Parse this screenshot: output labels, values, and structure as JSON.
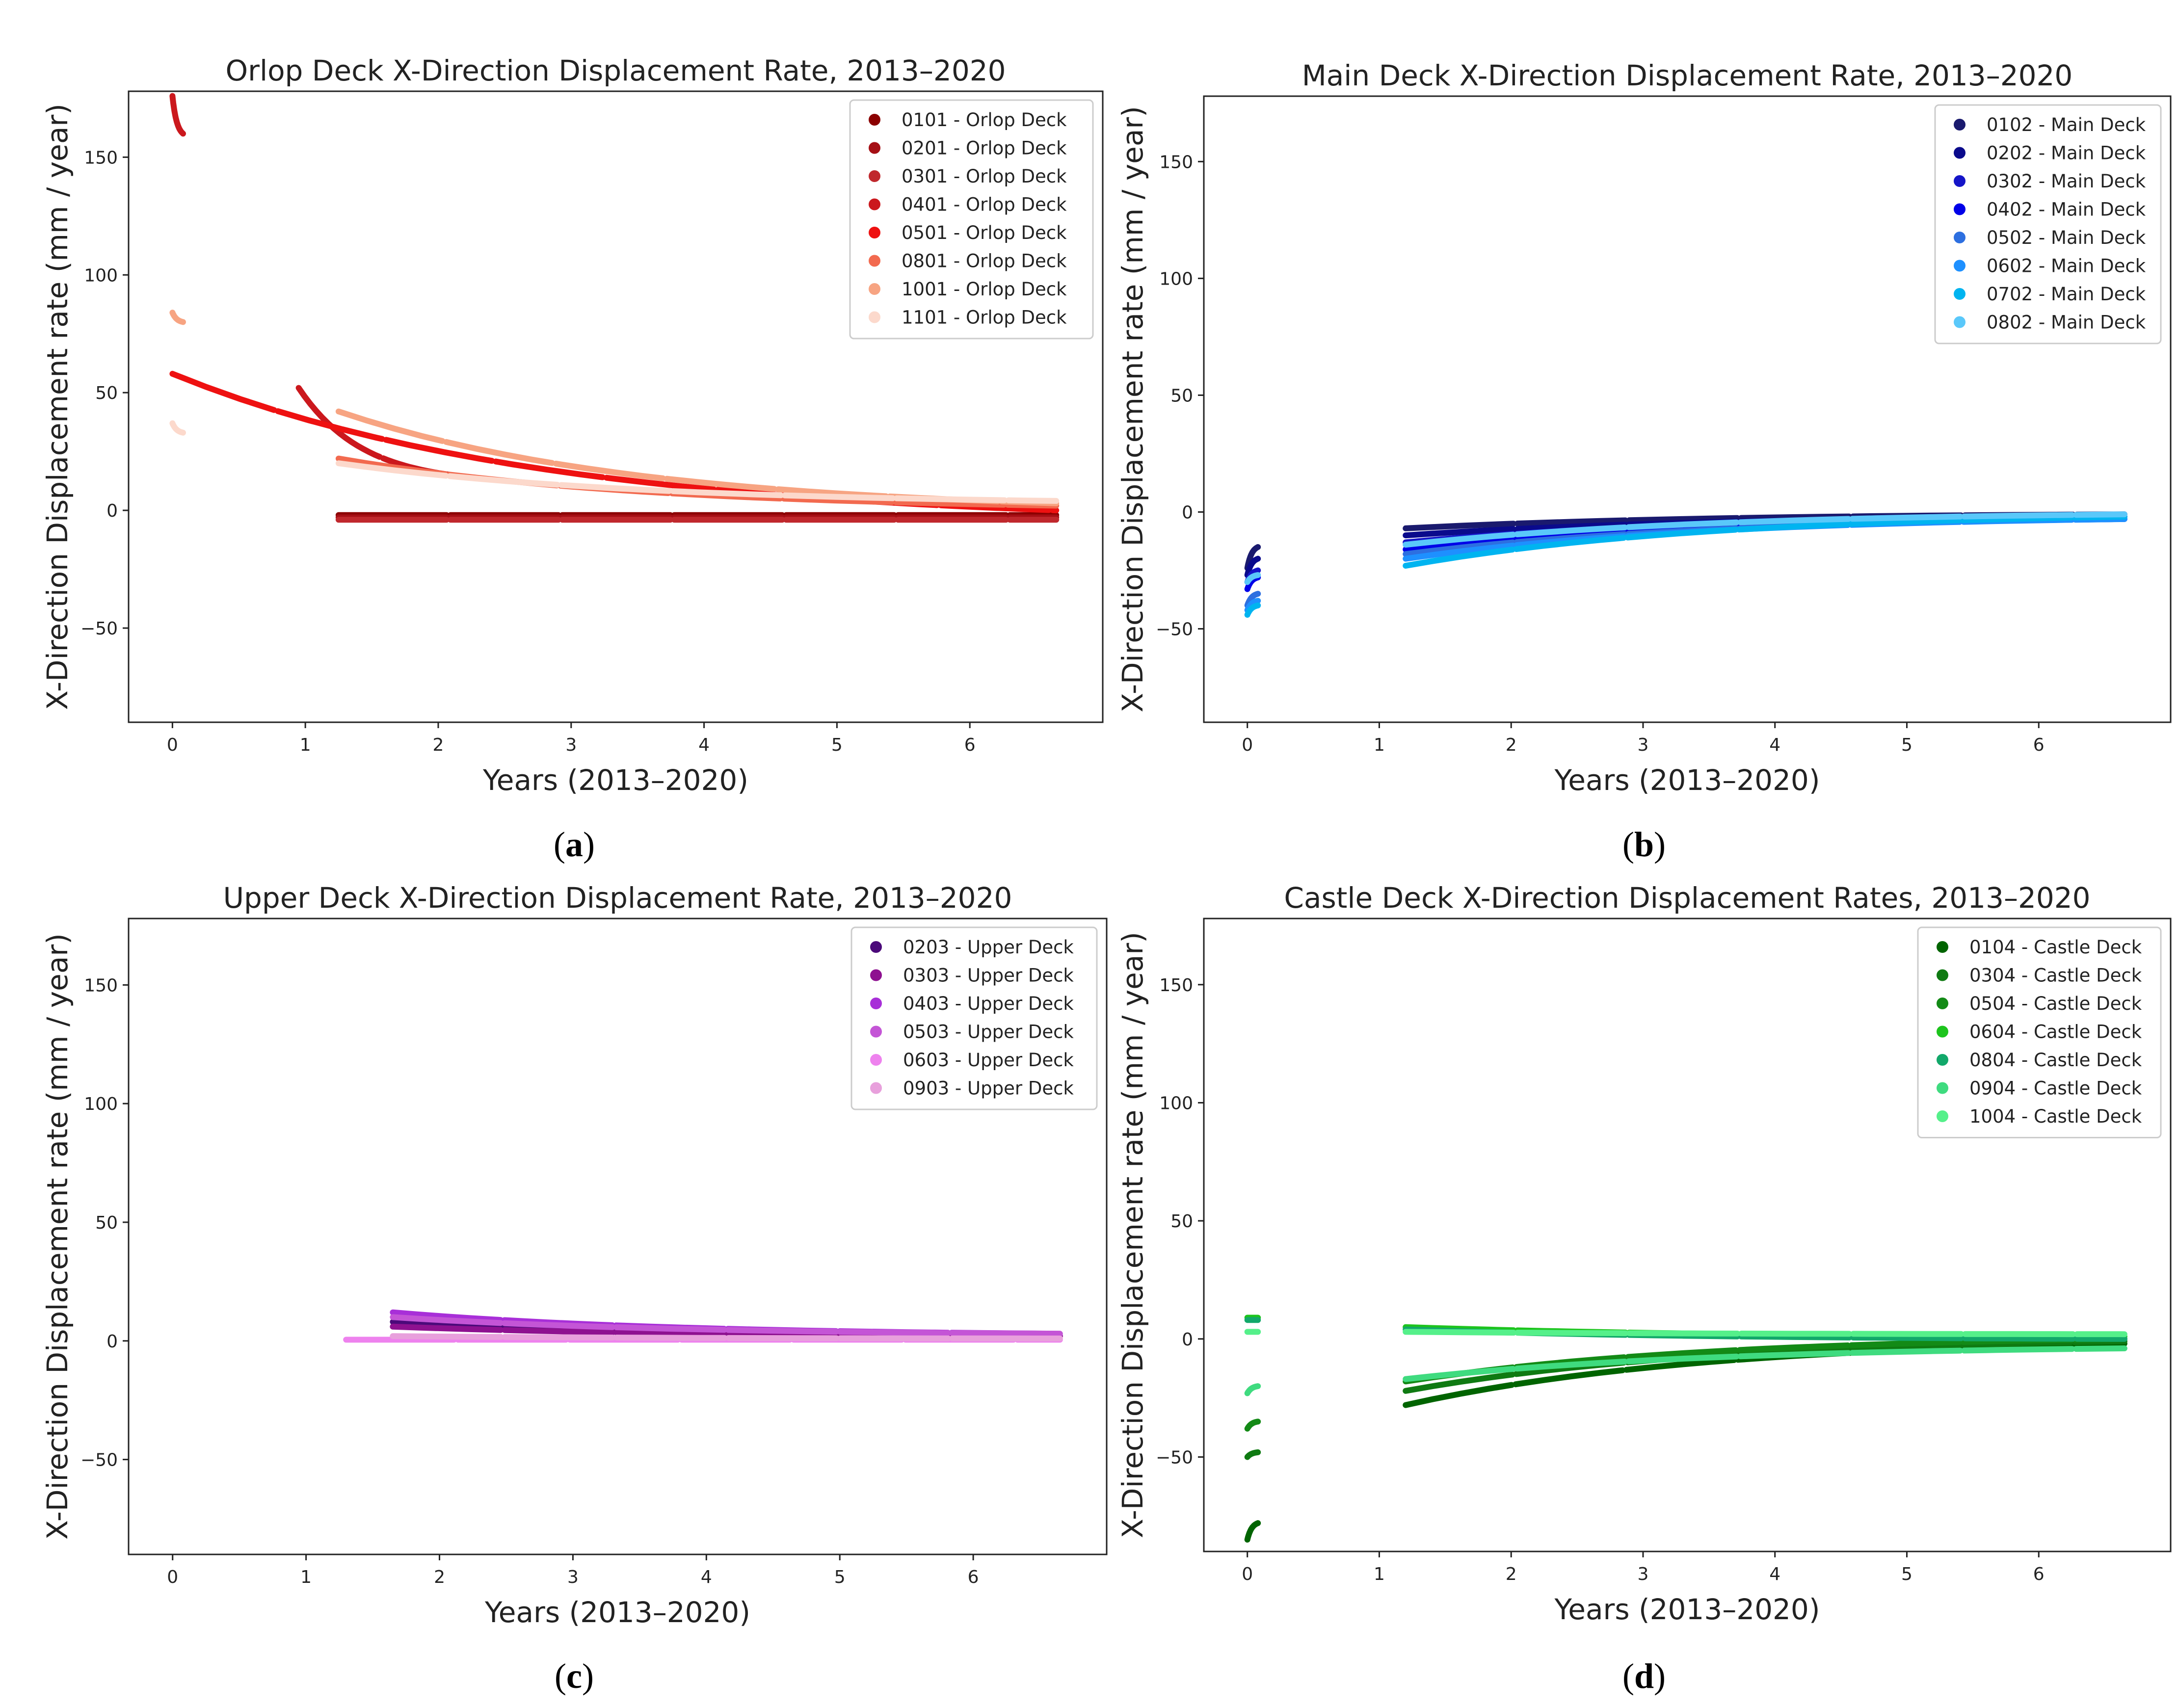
{
  "figure": {
    "captions": [
      "(a)",
      "(b)",
      "(c)",
      "(d)"
    ],
    "caption_letters": [
      "a",
      "b",
      "c",
      "d"
    ]
  },
  "chart_data": [
    {
      "type": "scatter",
      "title": "Orlop Deck X-Direction Displacement Rate, 2013–2020",
      "xlabel": "Years (2013–2020)",
      "ylabel": "X-Direction Displacement rate (mm / year)",
      "xlim": [
        -0.33,
        7.0
      ],
      "ylim": [
        -90,
        178
      ],
      "xticks": [
        0,
        1,
        2,
        3,
        4,
        5,
        6
      ],
      "yticks": [
        -50,
        0,
        50,
        100,
        150
      ],
      "grid": false,
      "legend_position": "top-right",
      "series": [
        {
          "name": "0101 - Orlop Deck",
          "color": "#8B0000",
          "segments": [
            {
              "x_start": 1.25,
              "x_end": 6.65,
              "y_start": -2,
              "y_end": -2
            }
          ]
        },
        {
          "name": "0201 - Orlop Deck",
          "color": "#A50F15",
          "segments": [
            {
              "x_start": 1.25,
              "x_end": 6.65,
              "y_start": -3,
              "y_end": -3
            }
          ]
        },
        {
          "name": "0301 - Orlop Deck",
          "color": "#C0282D",
          "segments": [
            {
              "x_start": 1.25,
              "x_end": 6.65,
              "y_start": -4,
              "y_end": -4
            }
          ]
        },
        {
          "name": "0401 - Orlop Deck",
          "color": "#CB181D",
          "segments": [
            {
              "x_start": 0.95,
              "x_end": 2.1,
              "y_start": 52,
              "y_end": 15
            },
            {
              "x_start": 0.0,
              "x_end": 0.08,
              "y_start": 176,
              "y_end": 160
            }
          ]
        },
        {
          "name": "0501 - Orlop Deck",
          "color": "#EE1111",
          "segments": [
            {
              "x_start": 0.0,
              "x_end": 6.65,
              "y_start": 58,
              "y_end": 0
            }
          ]
        },
        {
          "name": "0801 - Orlop Deck",
          "color": "#F26A4F",
          "segments": [
            {
              "x_start": 1.25,
              "x_end": 6.65,
              "y_start": 22,
              "y_end": 2
            }
          ]
        },
        {
          "name": "1001 - Orlop Deck",
          "color": "#F7A482",
          "segments": [
            {
              "x_start": 0.0,
              "x_end": 0.08,
              "y_start": 84,
              "y_end": 80
            },
            {
              "x_start": 1.25,
              "x_end": 6.65,
              "y_start": 42,
              "y_end": 3
            }
          ]
        },
        {
          "name": "1101 - Orlop Deck",
          "color": "#FCD9CC",
          "segments": [
            {
              "x_start": 0.0,
              "x_end": 0.08,
              "y_start": 37,
              "y_end": 33
            },
            {
              "x_start": 1.25,
              "x_end": 6.65,
              "y_start": 20,
              "y_end": 4
            }
          ]
        }
      ]
    },
    {
      "type": "scatter",
      "title": "Main Deck X-Direction Displacement Rate, 2013–2020",
      "xlabel": "Years (2013–2020)",
      "ylabel": "X-Direction Displacement rate (mm / year)",
      "xlim": [
        -0.33,
        7.0
      ],
      "ylim": [
        -90,
        178
      ],
      "xticks": [
        0,
        1,
        2,
        3,
        4,
        5,
        6
      ],
      "yticks": [
        -50,
        0,
        50,
        100,
        150
      ],
      "grid": false,
      "legend_position": "top-right",
      "series": [
        {
          "name": "0102 - Main Deck",
          "color": "#1A1A6E",
          "segments": [
            {
              "x_start": 0.0,
              "x_end": 0.08,
              "y_start": -24,
              "y_end": -15
            },
            {
              "x_start": 1.2,
              "x_end": 6.65,
              "y_start": -7,
              "y_end": -1
            }
          ]
        },
        {
          "name": "0202 - Main Deck",
          "color": "#0A0A8C",
          "segments": [
            {
              "x_start": 0.0,
              "x_end": 0.08,
              "y_start": -27,
              "y_end": -20
            },
            {
              "x_start": 1.2,
              "x_end": 6.65,
              "y_start": -10,
              "y_end": -2
            }
          ]
        },
        {
          "name": "0302 - Main Deck",
          "color": "#1515C8",
          "segments": [
            {
              "x_start": 0.0,
              "x_end": 0.08,
              "y_start": -30,
              "y_end": -25
            },
            {
              "x_start": 1.2,
              "x_end": 6.65,
              "y_start": -13,
              "y_end": -2
            }
          ]
        },
        {
          "name": "0402 - Main Deck",
          "color": "#0000E8",
          "segments": [
            {
              "x_start": 0.0,
              "x_end": 0.08,
              "y_start": -33,
              "y_end": -28
            },
            {
              "x_start": 1.2,
              "x_end": 6.65,
              "y_start": -16,
              "y_end": -3
            }
          ]
        },
        {
          "name": "0502 - Main Deck",
          "color": "#2D6FE0",
          "segments": [
            {
              "x_start": 0.0,
              "x_end": 0.08,
              "y_start": -40,
              "y_end": -35
            },
            {
              "x_start": 1.2,
              "x_end": 6.65,
              "y_start": -18,
              "y_end": -3
            }
          ]
        },
        {
          "name": "0602 - Main Deck",
          "color": "#1E90FF",
          "segments": [
            {
              "x_start": 0.0,
              "x_end": 0.08,
              "y_start": -42,
              "y_end": -38
            },
            {
              "x_start": 1.2,
              "x_end": 6.65,
              "y_start": -20,
              "y_end": -3
            }
          ]
        },
        {
          "name": "0702 - Main Deck",
          "color": "#00B4F0",
          "segments": [
            {
              "x_start": 0.0,
              "x_end": 0.08,
              "y_start": -44,
              "y_end": -40
            },
            {
              "x_start": 1.2,
              "x_end": 6.65,
              "y_start": -23,
              "y_end": -2
            }
          ]
        },
        {
          "name": "0802 - Main Deck",
          "color": "#5AC8FA",
          "segments": [
            {
              "x_start": 0.0,
              "x_end": 0.08,
              "y_start": -30,
              "y_end": -27
            },
            {
              "x_start": 1.2,
              "x_end": 6.65,
              "y_start": -14,
              "y_end": -1
            }
          ]
        }
      ]
    },
    {
      "type": "scatter",
      "title": "Upper Deck X-Direction Displacement Rate, 2013–2020",
      "xlabel": "Years (2013–2020)",
      "ylabel": "X-Direction Displacement rate (mm / year)",
      "xlim": [
        -0.33,
        7.0
      ],
      "ylim": [
        -90,
        178
      ],
      "xticks": [
        0,
        1,
        2,
        3,
        4,
        5,
        6
      ],
      "yticks": [
        -50,
        0,
        50,
        100,
        150
      ],
      "grid": false,
      "legend_position": "top-right",
      "series": [
        {
          "name": "0203 - Upper Deck",
          "color": "#4B0A7A",
          "segments": [
            {
              "x_start": 1.65,
              "x_end": 6.65,
              "y_start": 8,
              "y_end": 2
            }
          ]
        },
        {
          "name": "0303 - Upper Deck",
          "color": "#8E1190",
          "segments": [
            {
              "x_start": 1.65,
              "x_end": 6.65,
              "y_start": 6,
              "y_end": 2
            }
          ]
        },
        {
          "name": "0403 - Upper Deck",
          "color": "#A82FD8",
          "segments": [
            {
              "x_start": 1.65,
              "x_end": 6.65,
              "y_start": 12,
              "y_end": 3
            }
          ]
        },
        {
          "name": "0503 - Upper Deck",
          "color": "#C455D6",
          "segments": [
            {
              "x_start": 1.65,
              "x_end": 6.65,
              "y_start": 10,
              "y_end": 3
            }
          ]
        },
        {
          "name": "0603 - Upper Deck",
          "color": "#EE82EE",
          "segments": [
            {
              "x_start": 1.3,
              "x_end": 6.65,
              "y_start": 0.5,
              "y_end": 0.5
            }
          ]
        },
        {
          "name": "0903 - Upper Deck",
          "color": "#E8A0DC",
          "segments": [
            {
              "x_start": 1.65,
              "x_end": 6.65,
              "y_start": 2,
              "y_end": 1
            }
          ]
        }
      ]
    },
    {
      "type": "scatter",
      "title": "Castle Deck X-Direction Displacement Rates, 2013–2020",
      "xlabel": "Years (2013–2020)",
      "ylabel": "X-Direction Displacement rate (mm / year)",
      "xlim": [
        -0.33,
        7.0
      ],
      "ylim": [
        -90,
        178
      ],
      "xticks": [
        0,
        1,
        2,
        3,
        4,
        5,
        6
      ],
      "yticks": [
        -50,
        0,
        50,
        100,
        150
      ],
      "grid": false,
      "legend_position": "top-right",
      "series": [
        {
          "name": "0104 - Castle Deck",
          "color": "#006400",
          "segments": [
            {
              "x_start": 0.0,
              "x_end": 0.08,
              "y_start": -85,
              "y_end": -78
            },
            {
              "x_start": 1.2,
              "x_end": 6.65,
              "y_start": -28,
              "y_end": -2
            }
          ]
        },
        {
          "name": "0304 - Castle Deck",
          "color": "#0F7A12",
          "segments": [
            {
              "x_start": 0.0,
              "x_end": 0.08,
              "y_start": -50,
              "y_end": -48
            },
            {
              "x_start": 1.2,
              "x_end": 6.65,
              "y_start": -22,
              "y_end": -1
            }
          ]
        },
        {
          "name": "0504 - Castle Deck",
          "color": "#138A16",
          "segments": [
            {
              "x_start": 0.0,
              "x_end": 0.08,
              "y_start": -38,
              "y_end": -35
            },
            {
              "x_start": 1.2,
              "x_end": 6.65,
              "y_start": -18,
              "y_end": 0
            }
          ]
        },
        {
          "name": "0604 - Castle Deck",
          "color": "#1DC41D",
          "segments": [
            {
              "x_start": 0.0,
              "x_end": 0.08,
              "y_start": 9,
              "y_end": 9
            },
            {
              "x_start": 1.2,
              "x_end": 6.65,
              "y_start": 5,
              "y_end": 1
            }
          ]
        },
        {
          "name": "0804 - Castle Deck",
          "color": "#12A86A",
          "segments": [
            {
              "x_start": 0.0,
              "x_end": 0.08,
              "y_start": 8,
              "y_end": 8
            },
            {
              "x_start": 1.2,
              "x_end": 6.65,
              "y_start": 4,
              "y_end": 0
            }
          ]
        },
        {
          "name": "0904 - Castle Deck",
          "color": "#3FDB7F",
          "segments": [
            {
              "x_start": 0.0,
              "x_end": 0.08,
              "y_start": -23,
              "y_end": -20
            },
            {
              "x_start": 1.2,
              "x_end": 6.65,
              "y_start": -17,
              "y_end": -4
            }
          ]
        },
        {
          "name": "1004 - Castle Deck",
          "color": "#55F08A",
          "segments": [
            {
              "x_start": 0.0,
              "x_end": 0.08,
              "y_start": 3,
              "y_end": 3
            },
            {
              "x_start": 1.2,
              "x_end": 6.65,
              "y_start": 3,
              "y_end": 2
            }
          ]
        }
      ]
    }
  ]
}
